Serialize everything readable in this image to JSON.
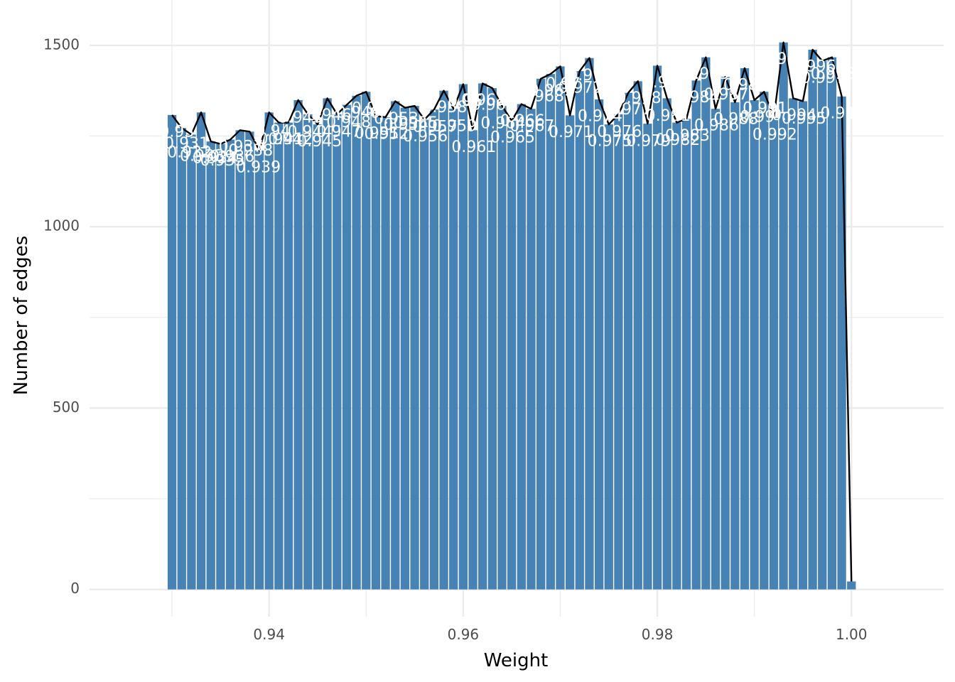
{
  "chart_data": {
    "type": "bar",
    "title": "",
    "xlabel": "Weight",
    "ylabel": "Number of edges",
    "xlim": [
      0.9215,
      1.0095
    ],
    "ylim": [
      -75,
      1625
    ],
    "x_ticks": [
      {
        "value": 0.94,
        "label": "0.94"
      },
      {
        "value": 0.96,
        "label": "0.96"
      },
      {
        "value": 0.98,
        "label": "0.98"
      },
      {
        "value": 1.0,
        "label": "1.00"
      }
    ],
    "y_ticks": [
      {
        "value": 0,
        "label": "0"
      },
      {
        "value": 500,
        "label": "500"
      },
      {
        "value": 1000,
        "label": "1000"
      },
      {
        "value": 1500,
        "label": "1500"
      }
    ],
    "grid": true,
    "legend": "none",
    "bar_color": "#4682B4",
    "line_color": "#000000",
    "label_color": "#FFFFFF",
    "bin_width": 0.001,
    "series": [
      {
        "kind": "bar+line",
        "x": [
          0.93,
          0.931,
          0.932,
          0.933,
          0.934,
          0.935,
          0.936,
          0.937,
          0.938,
          0.939,
          0.94,
          0.941,
          0.942,
          0.943,
          0.944,
          0.945,
          0.946,
          0.947,
          0.948,
          0.949,
          0.95,
          0.951,
          0.952,
          0.953,
          0.954,
          0.955,
          0.956,
          0.957,
          0.958,
          0.959,
          0.96,
          0.961,
          0.962,
          0.963,
          0.964,
          0.965,
          0.966,
          0.967,
          0.968,
          0.969,
          0.97,
          0.971,
          0.972,
          0.973,
          0.974,
          0.975,
          0.976,
          0.977,
          0.978,
          0.979,
          0.98,
          0.981,
          0.982,
          0.983,
          0.984,
          0.985,
          0.986,
          0.987,
          0.988,
          0.989,
          0.99,
          0.991,
          0.992,
          0.993,
          0.994,
          0.995,
          0.996,
          0.997,
          0.998,
          0.999,
          1.0
        ],
        "values": [
          1308,
          1272,
          1254,
          1315,
          1235,
          1228,
          1240,
          1266,
          1262,
          1210,
          1315,
          1287,
          1287,
          1349,
          1310,
          1282,
          1354,
          1310,
          1336,
          1361,
          1372,
          1305,
          1302,
          1346,
          1328,
          1333,
          1295,
          1323,
          1375,
          1325,
          1393,
          1266,
          1395,
          1382,
          1333,
          1292,
          1338,
          1325,
          1408,
          1421,
          1442,
          1307,
          1429,
          1465,
          1351,
          1282,
          1310,
          1369,
          1401,
          1284,
          1444,
          1354,
          1287,
          1297,
          1403,
          1467,
          1325,
          1413,
          1343,
          1437,
          1349,
          1372,
          1300,
          1508,
          1354,
          1346,
          1488,
          1457,
          1467,
          1359,
          22
        ]
      }
    ],
    "bar_labels": [
      {
        "text": "0.93",
        "x": 0.9305,
        "y": 1260
      },
      {
        "text": "0.931",
        "x": 0.9315,
        "y": 1227
      },
      {
        "text": "0.932",
        "x": 0.9318,
        "y": 1203
      },
      {
        "text": "0.933",
        "x": 0.9331,
        "y": 1193
      },
      {
        "text": "0.934",
        "x": 0.9344,
        "y": 1187
      },
      {
        "text": "0.935",
        "x": 0.9352,
        "y": 1180
      },
      {
        "text": "0.936",
        "x": 0.9362,
        "y": 1191
      },
      {
        "text": "0.937",
        "x": 0.9371,
        "y": 1219
      },
      {
        "text": "0.938",
        "x": 0.9381,
        "y": 1208
      },
      {
        "text": "0.939",
        "x": 0.9389,
        "y": 1162
      },
      {
        "text": "0.94",
        "x": 0.9404,
        "y": 1262
      },
      {
        "text": "0.941",
        "x": 0.9412,
        "y": 1239
      },
      {
        "text": "0.942",
        "x": 0.9422,
        "y": 1239
      },
      {
        "text": "0.943",
        "x": 0.9432,
        "y": 1299
      },
      {
        "text": "0.944",
        "x": 0.9442,
        "y": 1260
      },
      {
        "text": "0.945",
        "x": 0.9452,
        "y": 1233
      },
      {
        "text": "0.946",
        "x": 0.9462,
        "y": 1306
      },
      {
        "text": "0.947",
        "x": 0.9472,
        "y": 1260
      },
      {
        "text": "0.948",
        "x": 0.9482,
        "y": 1286
      },
      {
        "text": "0.949",
        "x": 0.9492,
        "y": 1313
      },
      {
        "text": "0.95",
        "x": 0.9503,
        "y": 1324
      },
      {
        "text": "0.951",
        "x": 0.9511,
        "y": 1256
      },
      {
        "text": "0.952",
        "x": 0.9521,
        "y": 1254
      },
      {
        "text": "0.953",
        "x": 0.9531,
        "y": 1296
      },
      {
        "text": "0.954",
        "x": 0.9541,
        "y": 1279
      },
      {
        "text": "0.955",
        "x": 0.9551,
        "y": 1284
      },
      {
        "text": "0.956",
        "x": 0.9561,
        "y": 1247
      },
      {
        "text": "0.957",
        "x": 0.9571,
        "y": 1273
      },
      {
        "text": "0.958",
        "x": 0.9581,
        "y": 1327
      },
      {
        "text": "0.959",
        "x": 0.9591,
        "y": 1275
      },
      {
        "text": "0.96",
        "x": 0.9602,
        "y": 1345
      },
      {
        "text": "0.961",
        "x": 0.9611,
        "y": 1218
      },
      {
        "text": "0.962",
        "x": 0.9621,
        "y": 1347
      },
      {
        "text": "0.963",
        "x": 0.9631,
        "y": 1334
      },
      {
        "text": "0.964",
        "x": 0.9641,
        "y": 1283
      },
      {
        "text": "0.965",
        "x": 0.9651,
        "y": 1244
      },
      {
        "text": "0.966",
        "x": 0.9661,
        "y": 1290
      },
      {
        "text": "0.967",
        "x": 0.9671,
        "y": 1275
      },
      {
        "text": "0.968",
        "x": 0.9681,
        "y": 1358
      },
      {
        "text": "0.969",
        "x": 0.9691,
        "y": 1373
      },
      {
        "text": "0.97",
        "x": 0.9703,
        "y": 1392
      },
      {
        "text": "0.971",
        "x": 0.9711,
        "y": 1259
      },
      {
        "text": "0.972",
        "x": 0.9721,
        "y": 1381
      },
      {
        "text": "0.973",
        "x": 0.9731,
        "y": 1415
      },
      {
        "text": "0.974",
        "x": 0.9741,
        "y": 1303
      },
      {
        "text": "0.975",
        "x": 0.9751,
        "y": 1234
      },
      {
        "text": "0.976",
        "x": 0.9761,
        "y": 1260
      },
      {
        "text": "0.977",
        "x": 0.9771,
        "y": 1321
      },
      {
        "text": "0.978",
        "x": 0.9781,
        "y": 1353
      },
      {
        "text": "0.979",
        "x": 0.9791,
        "y": 1234
      },
      {
        "text": "0.98",
        "x": 0.9803,
        "y": 1396
      },
      {
        "text": "0.981",
        "x": 0.9811,
        "y": 1304
      },
      {
        "text": "0.982",
        "x": 0.9821,
        "y": 1237
      },
      {
        "text": "0.983",
        "x": 0.9831,
        "y": 1249
      },
      {
        "text": "0.984",
        "x": 0.9841,
        "y": 1355
      },
      {
        "text": "0.985",
        "x": 0.9851,
        "y": 1419
      },
      {
        "text": "0.986",
        "x": 0.9861,
        "y": 1277
      },
      {
        "text": "0.987",
        "x": 0.9871,
        "y": 1363
      },
      {
        "text": "0.988",
        "x": 0.9881,
        "y": 1295
      },
      {
        "text": "0.989",
        "x": 0.9891,
        "y": 1389
      },
      {
        "text": "0.99",
        "x": 0.9903,
        "y": 1301
      },
      {
        "text": "0.991",
        "x": 0.9911,
        "y": 1324
      },
      {
        "text": "0.992",
        "x": 0.9921,
        "y": 1252
      },
      {
        "text": "0.993",
        "x": 0.9931,
        "y": 1460
      },
      {
        "text": "0.994",
        "x": 0.9941,
        "y": 1306
      },
      {
        "text": "0.995",
        "x": 0.9951,
        "y": 1296
      },
      {
        "text": "0.996",
        "x": 0.9961,
        "y": 1440
      },
      {
        "text": "0.997",
        "x": 0.9971,
        "y": 1409
      },
      {
        "text": "0.998",
        "x": 0.9981,
        "y": 1419
      },
      {
        "text": "0.999",
        "x": 0.9991,
        "y": 1311
      },
      {
        "text": "1",
        "x": 1.0,
        "y": 1310
      }
    ]
  }
}
